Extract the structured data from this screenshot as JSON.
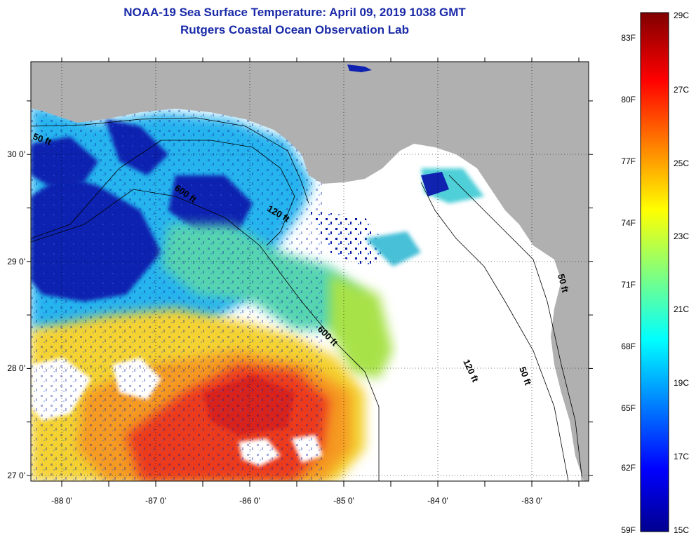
{
  "header": {
    "title": "NOAA-19 Sea Surface Temperature:  April 09, 2019 1038 GMT",
    "subtitle": "Rutgers Coastal Ocean Observation Lab"
  },
  "map": {
    "lon_ticks": [
      "-88 0'",
      "-87 0'",
      "-86 0'",
      "-85 0'",
      "-84 0'",
      "-83 0'"
    ],
    "lat_ticks": [
      "30 0'",
      "29 0'",
      "28 0'",
      "27 0'"
    ],
    "contour_labels": [
      "50 ft",
      "600 ft",
      "120 ft",
      "600 ft",
      "120 ft",
      "50 ft",
      "50 ft"
    ],
    "land_color": "#b0b0b0",
    "cloud_color": "#ffffff"
  },
  "colorbar": {
    "fahrenheit_ticks": [
      "83F",
      "80F",
      "77F",
      "74F",
      "71F",
      "68F",
      "65F",
      "62F",
      "59F"
    ],
    "celsius_ticks": [
      "29C",
      "27C",
      "25C",
      "23C",
      "21C",
      "19C",
      "17C",
      "15C"
    ],
    "min_c": 15,
    "max_c": 29
  }
}
